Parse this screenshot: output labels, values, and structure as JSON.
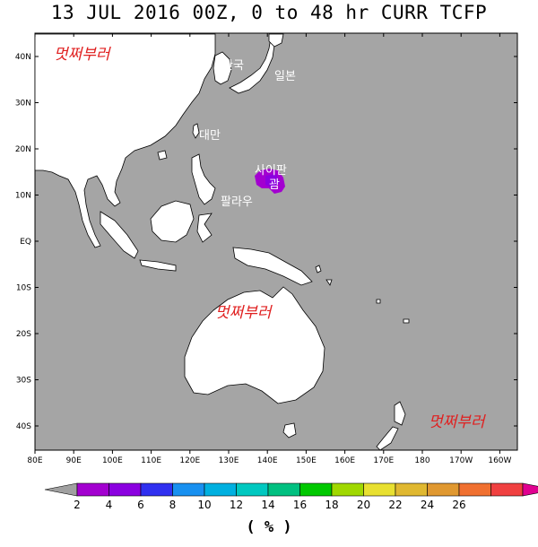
{
  "title": "13 JUL 2016 00Z,  0 to  48 hr CURR TCFP",
  "colors": {
    "ocean": "#a5a5a5",
    "land": "#ffffff",
    "probability": "#a300d0",
    "watermark": "#e02020"
  },
  "axes": {
    "lon_labels": [
      "80E",
      "90E",
      "100E",
      "110E",
      "120E",
      "130E",
      "140E",
      "150E",
      "160E",
      "170E",
      "180",
      "170W",
      "160W"
    ],
    "lat_labels": [
      "40N",
      "30N",
      "20N",
      "10N",
      "EQ",
      "10S",
      "20S",
      "30S",
      "40S"
    ]
  },
  "places": {
    "korea": "한국",
    "japan": "일본",
    "taiwan": "대만",
    "palau": "팔라우",
    "guam": "괌",
    "saipan": "사이판"
  },
  "watermark": "멋쩌부러",
  "colorbar": {
    "colors": [
      "#a0a0a0",
      "#a300d0",
      "#8b00e0",
      "#3030f0",
      "#1890f0",
      "#00b0e0",
      "#00c8c0",
      "#00c080",
      "#00c800",
      "#a0d800",
      "#e8e030",
      "#e0b830",
      "#e09830",
      "#f07030",
      "#f04040",
      "#e00090"
    ],
    "labels": [
      "2",
      "4",
      "6",
      "8",
      "10",
      "12",
      "14",
      "16",
      "18",
      "20",
      "22",
      "24",
      "26"
    ]
  },
  "unit": "( % )"
}
